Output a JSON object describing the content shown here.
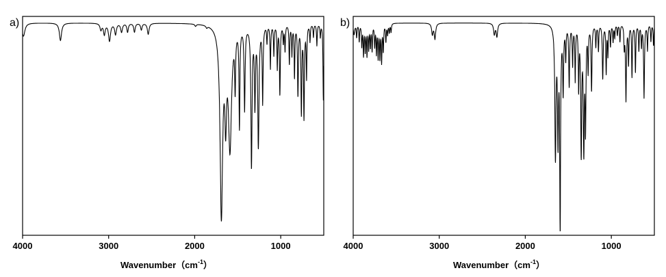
{
  "chart_data": [
    {
      "type": "line",
      "panel_label": "a)",
      "xlabel": "Wavenumber（cm",
      "xlabel_sup": "-1",
      "xlabel_close": "）",
      "ylabel": "",
      "xlim": [
        4000,
        500
      ],
      "ylim": [
        0,
        1
      ],
      "x_reversed": true,
      "grid": false,
      "x_ticks": [
        4000,
        3000,
        2000,
        1000
      ],
      "x_tick_labels": [
        "4000",
        "3000",
        "2000",
        "1000"
      ],
      "series": [
        {
          "baseline": 0.97,
          "bands": [
            [
              3990,
              0.06,
              20
            ],
            [
              3560,
              0.08,
              15
            ],
            [
              3090,
              0.03,
              12
            ],
            [
              3050,
              0.05,
              12
            ],
            [
              2990,
              0.08,
              14
            ],
            [
              2920,
              0.05,
              12
            ],
            [
              2850,
              0.04,
              12
            ],
            [
              2780,
              0.04,
              10
            ],
            [
              2700,
              0.04,
              10
            ],
            [
              2620,
              0.03,
              10
            ],
            [
              2540,
              0.05,
              12
            ],
            [
              1990,
              0.01,
              10
            ],
            [
              1860,
              0.01,
              10
            ],
            [
              1690,
              0.86,
              18
            ],
            [
              1640,
              0.35,
              12
            ],
            [
              1590,
              0.55,
              22
            ],
            [
              1530,
              0.25,
              6
            ],
            [
              1480,
              0.45,
              6
            ],
            [
              1420,
              0.38,
              7
            ],
            [
              1340,
              0.64,
              8
            ],
            [
              1300,
              0.35,
              7
            ],
            [
              1260,
              0.55,
              9
            ],
            [
              1210,
              0.35,
              6
            ],
            [
              1160,
              0.08,
              5
            ],
            [
              1120,
              0.2,
              5
            ],
            [
              1080,
              0.14,
              5
            ],
            [
              1040,
              0.2,
              5
            ],
            [
              1010,
              0.32,
              6
            ],
            [
              970,
              0.08,
              5
            ],
            [
              950,
              0.12,
              5
            ],
            [
              900,
              0.18,
              5
            ],
            [
              870,
              0.14,
              5
            ],
            [
              840,
              0.24,
              5
            ],
            [
              800,
              0.32,
              6
            ],
            [
              760,
              0.4,
              6
            ],
            [
              730,
              0.42,
              6
            ],
            [
              700,
              0.24,
              5
            ],
            [
              660,
              0.08,
              5
            ],
            [
              620,
              0.06,
              5
            ],
            [
              580,
              0.1,
              5
            ],
            [
              540,
              0.06,
              5
            ],
            [
              505,
              0.35,
              5
            ]
          ]
        }
      ]
    },
    {
      "type": "line",
      "panel_label": "b)",
      "xlabel": "Wavenumber（cm",
      "xlabel_sup": "-1",
      "xlabel_close": "）",
      "ylabel": "",
      "xlim": [
        4000,
        500
      ],
      "ylim": [
        0,
        1
      ],
      "x_reversed": true,
      "grid": false,
      "x_ticks": [
        4000,
        3000,
        2000,
        1000
      ],
      "x_tick_labels": [
        "4000",
        "3000",
        "2000",
        "1000"
      ],
      "series": [
        {
          "baseline": 0.97,
          "bands": [
            [
              3990,
              0.05,
              10
            ],
            [
              3960,
              0.06,
              5
            ],
            [
              3930,
              0.08,
              5
            ],
            [
              3900,
              0.1,
              5
            ],
            [
              3880,
              0.14,
              5
            ],
            [
              3860,
              0.12,
              5
            ],
            [
              3840,
              0.14,
              5
            ],
            [
              3820,
              0.11,
              5
            ],
            [
              3800,
              0.1,
              5
            ],
            [
              3780,
              0.12,
              5
            ],
            [
              3750,
              0.1,
              5
            ],
            [
              3730,
              0.13,
              5
            ],
            [
              3710,
              0.15,
              5
            ],
            [
              3690,
              0.15,
              5
            ],
            [
              3670,
              0.17,
              5
            ],
            [
              3650,
              0.12,
              5
            ],
            [
              3620,
              0.08,
              5
            ],
            [
              3600,
              0.05,
              5
            ],
            [
              3580,
              0.04,
              5
            ],
            [
              3560,
              0.04,
              5
            ],
            [
              3080,
              0.05,
              10
            ],
            [
              3050,
              0.07,
              10
            ],
            [
              2360,
              0.05,
              10
            ],
            [
              2330,
              0.06,
              10
            ],
            [
              1650,
              0.6,
              8
            ],
            [
              1620,
              0.5,
              7
            ],
            [
              1595,
              0.92,
              6
            ],
            [
              1560,
              0.3,
              6
            ],
            [
              1530,
              0.15,
              5
            ],
            [
              1490,
              0.28,
              6
            ],
            [
              1450,
              0.18,
              5
            ],
            [
              1420,
              0.25,
              5
            ],
            [
              1380,
              0.28,
              5
            ],
            [
              1350,
              0.58,
              7
            ],
            [
              1320,
              0.55,
              7
            ],
            [
              1300,
              0.45,
              6
            ],
            [
              1270,
              0.2,
              5
            ],
            [
              1230,
              0.3,
              6
            ],
            [
              1180,
              0.1,
              5
            ],
            [
              1150,
              0.12,
              5
            ],
            [
              1100,
              0.25,
              6
            ],
            [
              1060,
              0.22,
              5
            ],
            [
              1040,
              0.14,
              5
            ],
            [
              1010,
              0.1,
              5
            ],
            [
              980,
              0.08,
              5
            ],
            [
              960,
              0.06,
              5
            ],
            [
              930,
              0.05,
              5
            ],
            [
              900,
              0.08,
              5
            ],
            [
              850,
              0.1,
              5
            ],
            [
              830,
              0.35,
              6
            ],
            [
              800,
              0.18,
              5
            ],
            [
              760,
              0.24,
              5
            ],
            [
              720,
              0.22,
              5
            ],
            [
              680,
              0.12,
              5
            ],
            [
              650,
              0.1,
              5
            ],
            [
              620,
              0.34,
              6
            ],
            [
              580,
              0.12,
              5
            ],
            [
              540,
              0.08,
              5
            ],
            [
              510,
              0.1,
              5
            ]
          ]
        }
      ]
    }
  ]
}
